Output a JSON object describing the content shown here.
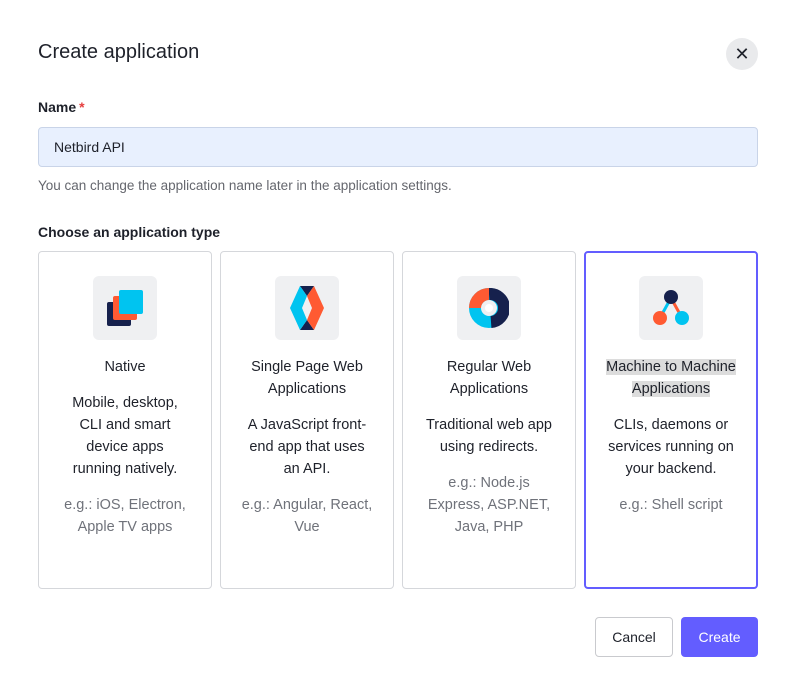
{
  "dialog": {
    "title": "Create application",
    "close_icon": "close-icon"
  },
  "name_field": {
    "label": "Name",
    "required_mark": "*",
    "value": "Netbird API",
    "help": "You can change the application name later in the application settings."
  },
  "type_section": {
    "label": "Choose an application type",
    "selected": "Machine to Machine Applications",
    "cards": [
      {
        "title": "Native",
        "description": "Mobile, desktop, CLI and smart device apps running natively.",
        "examples": "e.g.: iOS, Electron, Apple TV apps",
        "icon": "native-app-icon"
      },
      {
        "title": "Single Page Web Applications",
        "description": "A JavaScript front-end app that uses an API.",
        "examples": "e.g.: Angular, React, Vue",
        "icon": "spa-icon"
      },
      {
        "title": "Regular Web Applications",
        "description": "Traditional web app using redirects.",
        "examples": "e.g.: Node.js Express, ASP.NET, Java, PHP",
        "icon": "regular-web-app-icon"
      },
      {
        "title": "Machine to Machine Applications",
        "description": "CLIs, daemons or services running on your backend.",
        "examples": "e.g.: Shell script",
        "icon": "m2m-icon"
      }
    ]
  },
  "colors": {
    "accent": "#635dff",
    "navy": "#16214d",
    "orange": "#ff5a32",
    "cyan": "#00c4f0"
  },
  "footer": {
    "cancel": "Cancel",
    "create": "Create"
  }
}
